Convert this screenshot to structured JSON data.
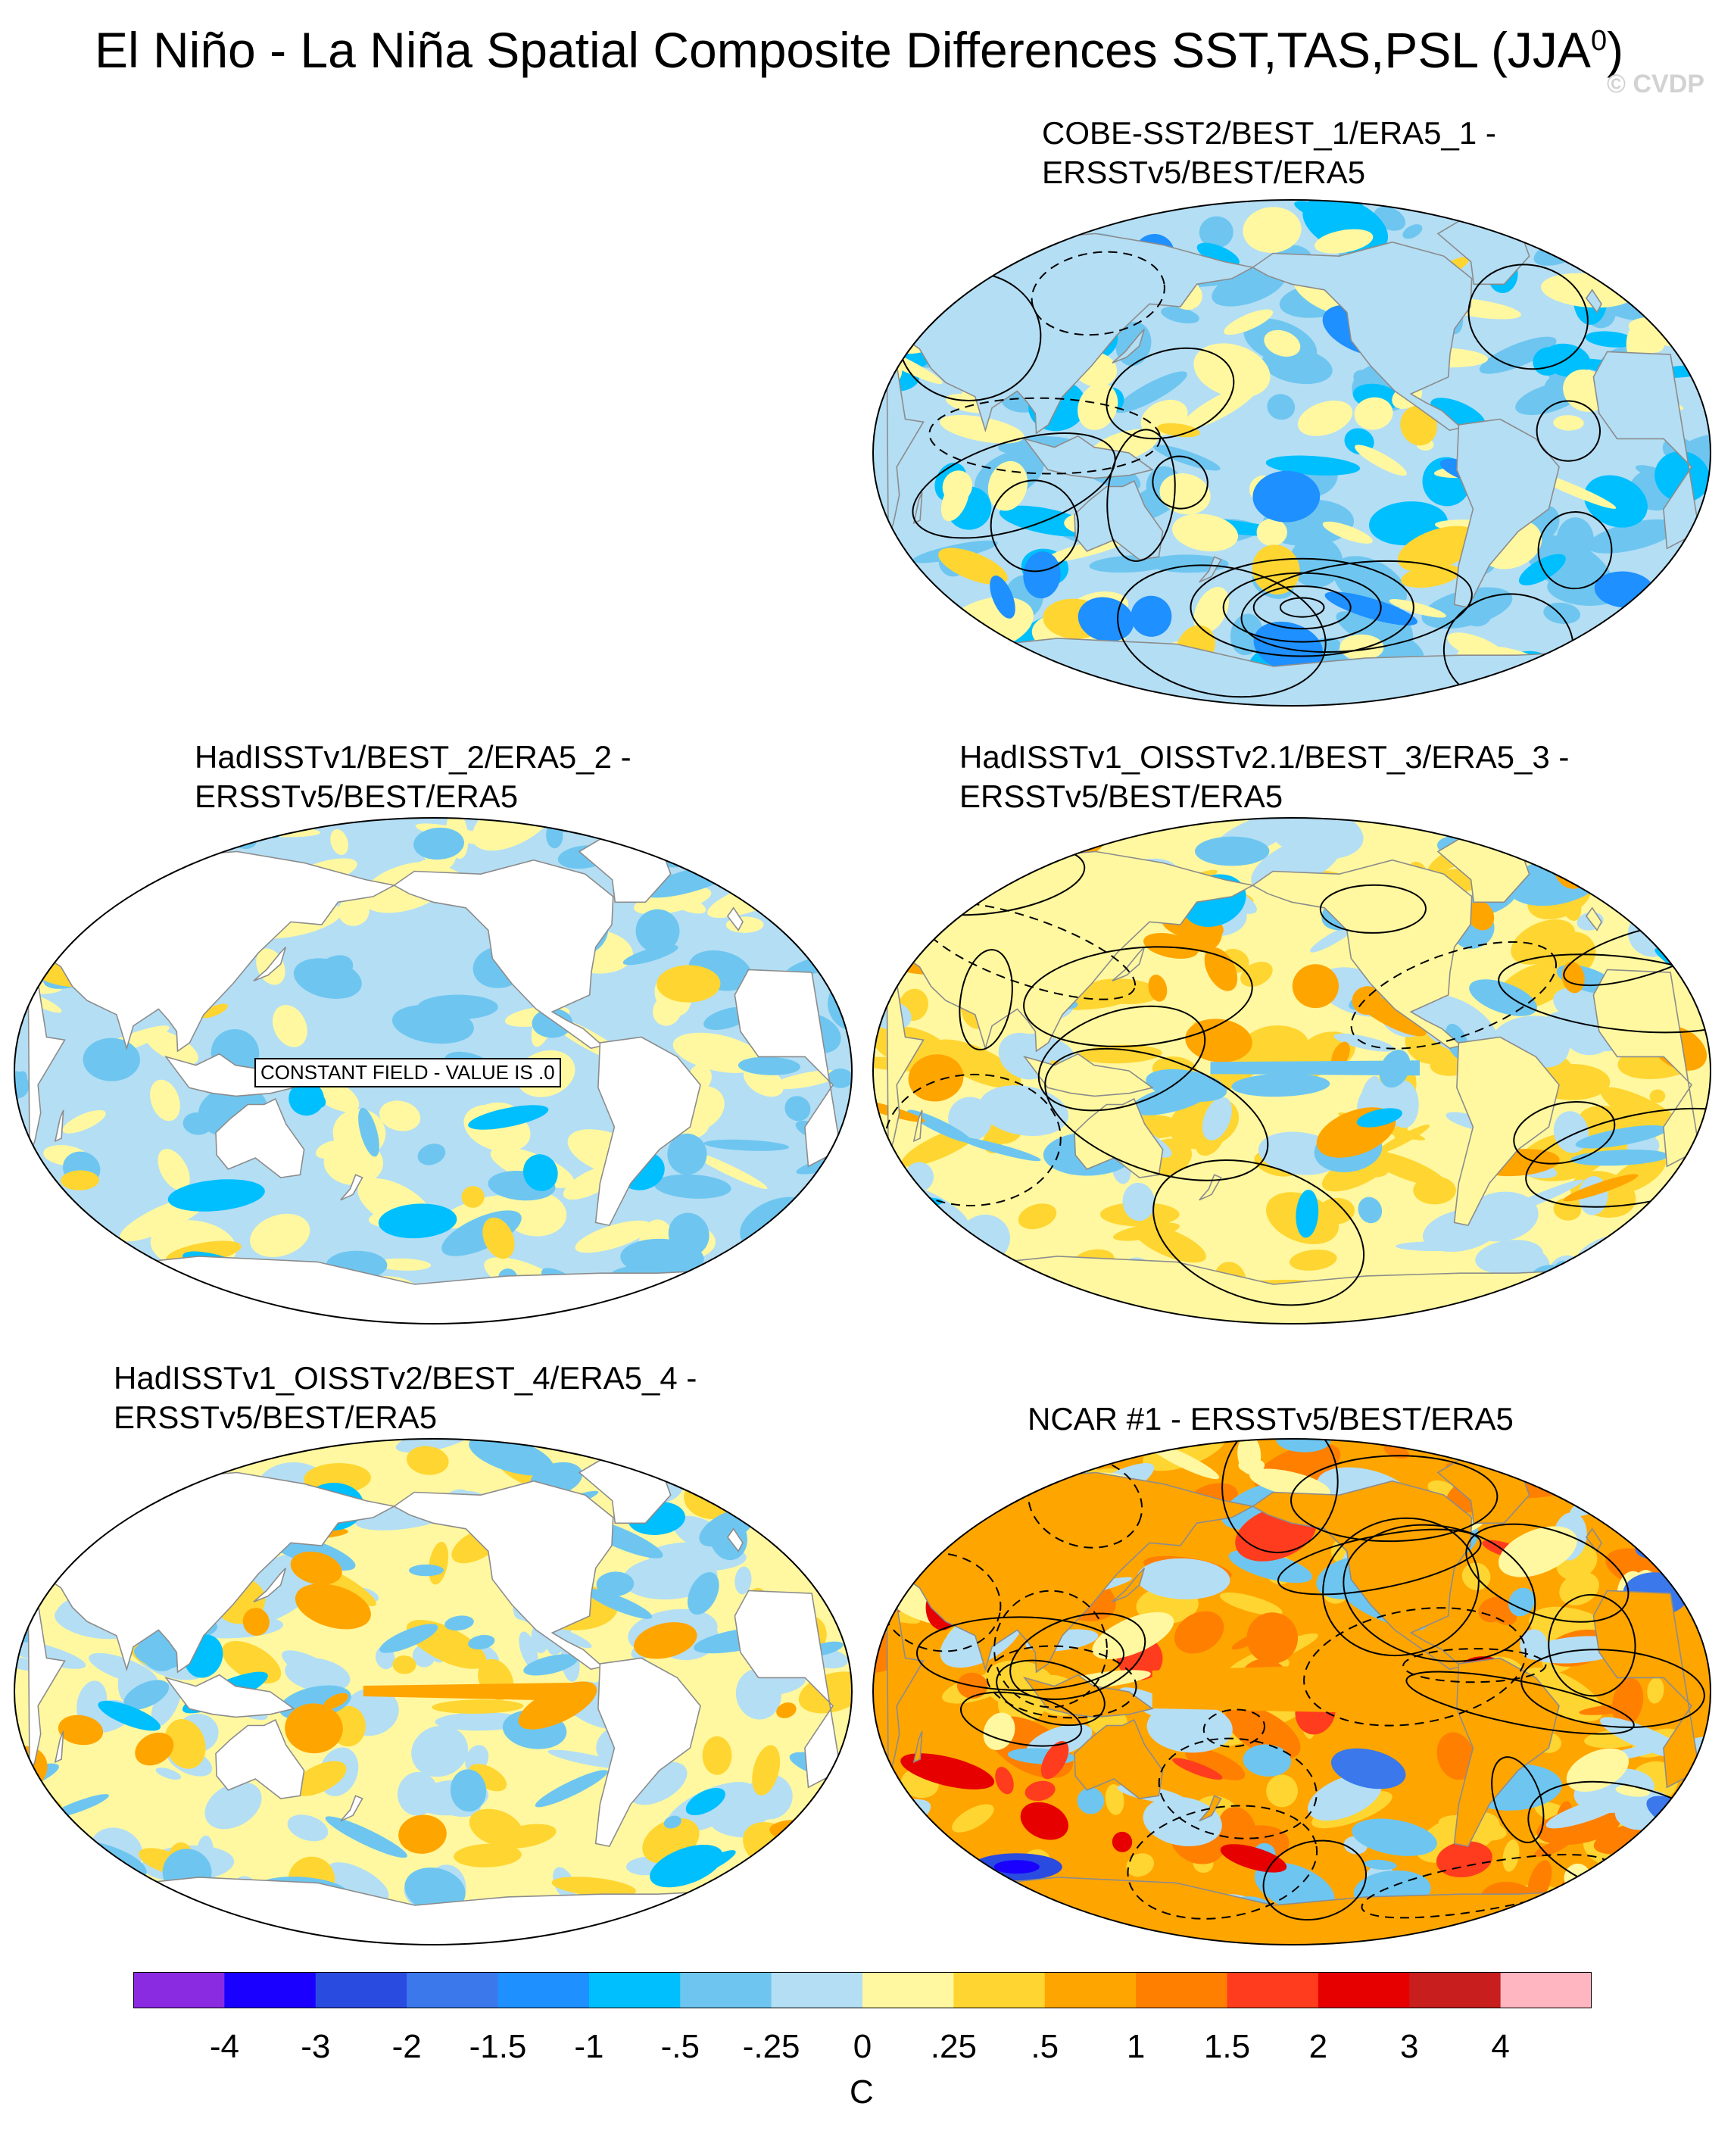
{
  "title": {
    "main": "El Niño - La Niña Spatial Composite Differences SST,TAS,PSL (JJA",
    "superscript": "0",
    "close": ")",
    "credit": "© CVDP"
  },
  "panels": [
    {
      "id": "cobe",
      "title_line1": "COBE-SST2/BEST_1/ERA5_1 -",
      "title_line2": "ERSSTv5/BEST/ERA5",
      "tone": "cool",
      "psl_contours": true
    },
    {
      "id": "hadisst-best2",
      "title_line1": "HadISSTv1/BEST_2/ERA5_2 -",
      "title_line2": "ERSSTv5/BEST/ERA5",
      "tone": "cool-ocean-only",
      "psl_contours": false,
      "note": "CONSTANT FIELD - VALUE IS .0"
    },
    {
      "id": "hadisst-oisst21",
      "title_line1": "HadISSTv1_OISSTv2.1/BEST_3/ERA5_3 -",
      "title_line2": "ERSSTv5/BEST/ERA5",
      "tone": "warm",
      "psl_contours": true
    },
    {
      "id": "hadisst-oisst2",
      "title_line1": "HadISSTv1_OISSTv2/BEST_4/ERA5_4 -",
      "title_line2": "ERSSTv5/BEST/ERA5",
      "tone": "mixed-ocean-only",
      "psl_contours": false
    },
    {
      "id": "ncar1",
      "title_line1": "NCAR #1 - ERSSTv5/BEST/ERA5",
      "title_line2": "",
      "tone": "hot",
      "psl_contours": true
    }
  ],
  "colorbar": {
    "units": "C",
    "colors": [
      "#8a2be2",
      "#1a00ff",
      "#2a4be0",
      "#3a78eb",
      "#1e90ff",
      "#00bfff",
      "#6ec6f0",
      "#b4def4",
      "#fff8a0",
      "#ffd531",
      "#ffa500",
      "#ff7f00",
      "#ff3c1e",
      "#e60000",
      "#c81e1e",
      "#ffb6c1"
    ],
    "labels": [
      "-4",
      "-3",
      "-2",
      "-1.5",
      "-1",
      "-.5",
      "-.25",
      "0",
      ".25",
      ".5",
      "1",
      "1.5",
      "2",
      "3",
      "4"
    ]
  }
}
